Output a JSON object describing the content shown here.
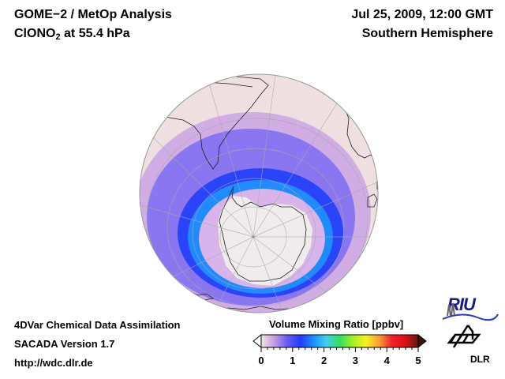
{
  "header": {
    "title_line1": "GOME−2 / MetOp Analysis",
    "species_main": "ClONO",
    "species_sub": "2",
    "species_rest": " at 55.4 hPa",
    "datetime": "Jul 25, 2009, 12:00 GMT",
    "hemisphere": "Southern Hemisphere"
  },
  "footer": {
    "line1": "4DVar Chemical Data Assimilation",
    "line2": "SACADA Version 1.7",
    "line3": "http://wdc.dlr.de"
  },
  "colorbar": {
    "label": "Volume Mixing Ratio [ppbv]",
    "min": 0,
    "max": 5,
    "ticks": [
      "0",
      "1",
      "2",
      "3",
      "4",
      "5"
    ],
    "colors": [
      "#f2e6ea",
      "#c79be0",
      "#6a5cf0",
      "#1e3cff",
      "#1e90ff",
      "#40d0f0",
      "#30e060",
      "#a0f020",
      "#f8f020",
      "#f8a030",
      "#f02030",
      "#e01010",
      "#5a1818"
    ],
    "extend": "both"
  },
  "logos": {
    "riu": "RIU",
    "dlr": "DLR"
  },
  "map": {
    "projection": "orthographic",
    "center": "South Pole (tilted)",
    "ocean_background": "#efdfe0",
    "coast_color": "#202020",
    "grid_color": "#a8a8a8"
  }
}
